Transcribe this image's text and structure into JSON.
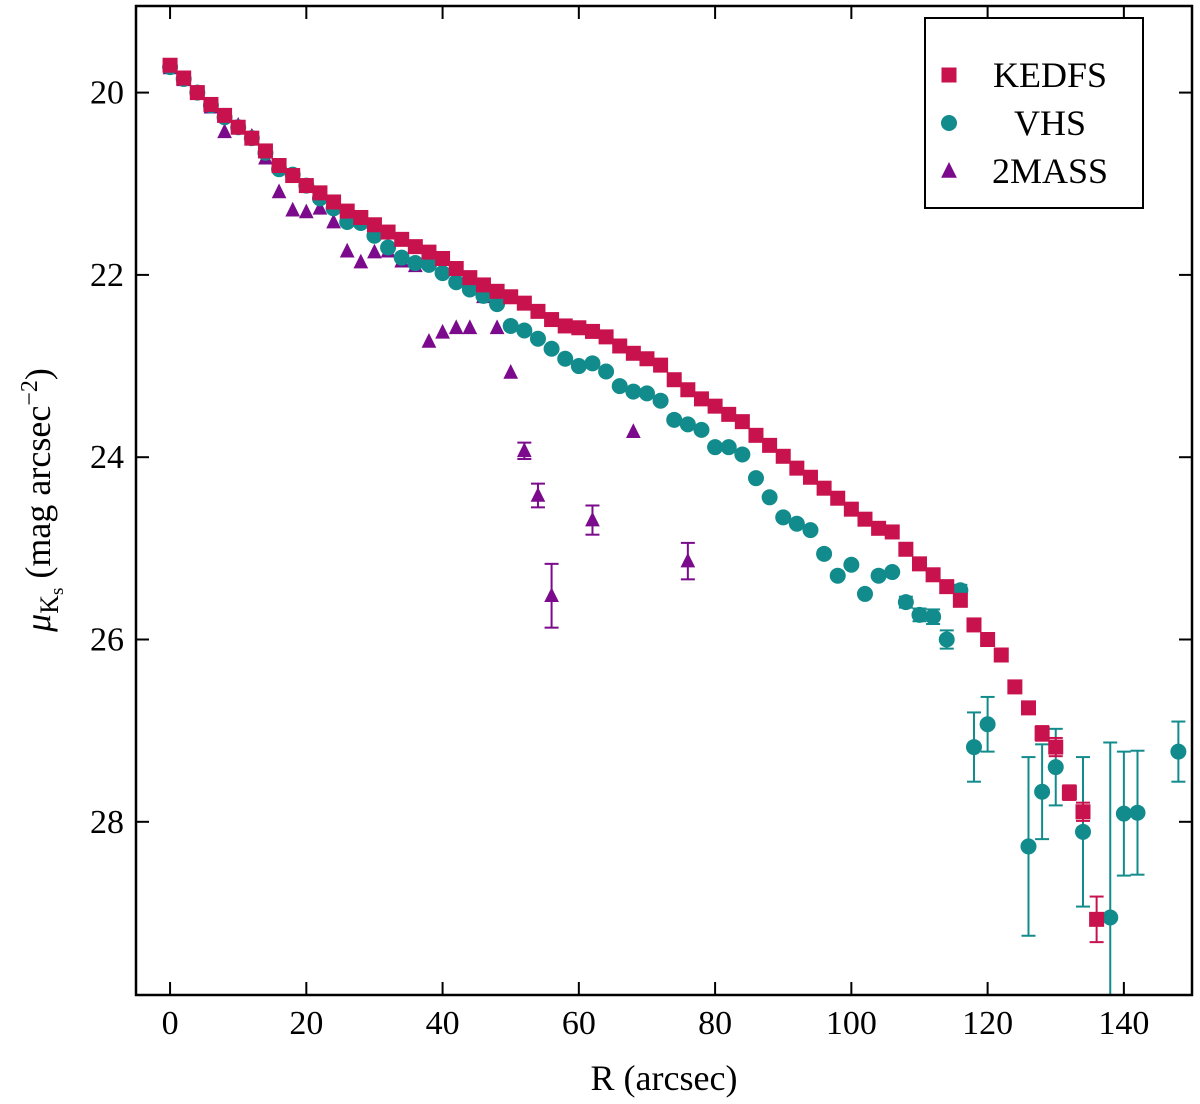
{
  "chart_data": {
    "type": "scatter",
    "title": "",
    "xlabel": "R (arcsec)",
    "ylabel": {
      "symbol": "μ",
      "subscript_main": "K",
      "subscript_sub": "s",
      "text": " (mag arcsec",
      "exponent": "−2",
      "close": ")"
    },
    "xlim": [
      -5,
      150
    ],
    "ylim": [
      29.9,
      19.05
    ],
    "y_inverted": true,
    "grid": false,
    "x_ticks": [
      0,
      20,
      40,
      60,
      80,
      100,
      120,
      140
    ],
    "x_tick_labels": [
      "0",
      "20",
      "40",
      "60",
      "80",
      "100",
      "120",
      "140"
    ],
    "y_ticks": [
      20,
      22,
      24,
      26,
      28
    ],
    "y_tick_labels": [
      "20",
      "22",
      "24",
      "26",
      "28"
    ],
    "legend_position": "top-right",
    "series": [
      {
        "name": "KEDFS",
        "marker": "square",
        "color": "#C8124E",
        "points": [
          [
            0,
            19.7
          ],
          [
            2,
            19.84
          ],
          [
            4,
            20.0
          ],
          [
            6,
            20.13
          ],
          [
            8,
            20.25
          ],
          [
            10,
            20.38
          ],
          [
            12,
            20.5
          ],
          [
            14,
            20.64
          ],
          [
            16,
            20.8
          ],
          [
            18,
            20.91
          ],
          [
            20,
            21.02
          ],
          [
            22,
            21.1
          ],
          [
            24,
            21.2
          ],
          [
            26,
            21.3
          ],
          [
            28,
            21.37
          ],
          [
            30,
            21.45
          ],
          [
            32,
            21.53
          ],
          [
            34,
            21.61
          ],
          [
            36,
            21.69
          ],
          [
            38,
            21.75
          ],
          [
            40,
            21.82
          ],
          [
            42,
            21.93
          ],
          [
            44,
            22.03
          ],
          [
            46,
            22.11
          ],
          [
            48,
            22.18
          ],
          [
            50,
            22.24
          ],
          [
            52,
            22.31
          ],
          [
            54,
            22.4
          ],
          [
            56,
            22.49
          ],
          [
            58,
            22.56
          ],
          [
            60,
            22.58
          ],
          [
            62,
            22.62
          ],
          [
            64,
            22.68
          ],
          [
            66,
            22.78
          ],
          [
            68,
            22.86
          ],
          [
            70,
            22.92
          ],
          [
            72,
            22.99
          ],
          [
            74,
            23.15
          ],
          [
            76,
            23.26
          ],
          [
            78,
            23.36
          ],
          [
            80,
            23.44
          ],
          [
            82,
            23.53
          ],
          [
            84,
            23.61
          ],
          [
            86,
            23.76
          ],
          [
            88,
            23.87
          ],
          [
            90,
            23.99
          ],
          [
            92,
            24.12
          ],
          [
            94,
            24.22
          ],
          [
            96,
            24.34
          ],
          [
            98,
            24.45
          ],
          [
            100,
            24.57
          ],
          [
            102,
            24.68
          ],
          [
            104,
            24.78
          ],
          [
            106,
            24.82
          ],
          [
            108,
            25.01
          ],
          [
            110,
            25.17
          ],
          [
            112,
            25.29
          ],
          [
            114,
            25.42
          ],
          [
            116,
            25.57
          ],
          [
            118,
            25.84
          ],
          [
            120,
            26.0
          ],
          [
            122,
            26.17
          ],
          [
            124,
            26.52
          ],
          [
            126,
            26.75
          ],
          [
            128,
            27.03
          ],
          [
            130,
            27.18
          ],
          [
            132,
            27.68
          ],
          [
            134,
            27.89
          ],
          [
            136,
            29.07
          ]
        ],
        "errors": [
          [
            128,
            0.08
          ],
          [
            130,
            0.1
          ],
          [
            132,
            0.08
          ],
          [
            134,
            0.1
          ],
          [
            136,
            0.25
          ]
        ]
      },
      {
        "name": "VHS",
        "marker": "circle",
        "color": "#128B8C",
        "points": [
          [
            0,
            19.72
          ],
          [
            2,
            19.85
          ],
          [
            4,
            20.0
          ],
          [
            6,
            20.14
          ],
          [
            8,
            20.27
          ],
          [
            10,
            20.38
          ],
          [
            12,
            20.5
          ],
          [
            14,
            20.66
          ],
          [
            16,
            20.84
          ],
          [
            18,
            20.9
          ],
          [
            20,
            21.02
          ],
          [
            22,
            21.16
          ],
          [
            24,
            21.27
          ],
          [
            26,
            21.42
          ],
          [
            28,
            21.43
          ],
          [
            30,
            21.57
          ],
          [
            32,
            21.7
          ],
          [
            34,
            21.81
          ],
          [
            36,
            21.87
          ],
          [
            38,
            21.89
          ],
          [
            40,
            21.98
          ],
          [
            42,
            22.08
          ],
          [
            44,
            22.16
          ],
          [
            46,
            22.23
          ],
          [
            48,
            22.32
          ],
          [
            50,
            22.56
          ],
          [
            52,
            22.61
          ],
          [
            54,
            22.7
          ],
          [
            56,
            22.81
          ],
          [
            58,
            22.92
          ],
          [
            60,
            23.0
          ],
          [
            62,
            22.97
          ],
          [
            64,
            23.06
          ],
          [
            66,
            23.22
          ],
          [
            68,
            23.28
          ],
          [
            70,
            23.3
          ],
          [
            72,
            23.38
          ],
          [
            74,
            23.59
          ],
          [
            76,
            23.64
          ],
          [
            78,
            23.7
          ],
          [
            80,
            23.89
          ],
          [
            82,
            23.89
          ],
          [
            84,
            23.97
          ],
          [
            86,
            24.23
          ],
          [
            88,
            24.44
          ],
          [
            90,
            24.66
          ],
          [
            92,
            24.73
          ],
          [
            94,
            24.8
          ],
          [
            96,
            25.06
          ],
          [
            98,
            25.3
          ],
          [
            100,
            25.18
          ],
          [
            102,
            25.5
          ],
          [
            104,
            25.3
          ],
          [
            106,
            25.26
          ],
          [
            108,
            25.59
          ],
          [
            110,
            25.73
          ],
          [
            112,
            25.75
          ],
          [
            114,
            26.0
          ],
          [
            116,
            25.46
          ],
          [
            118,
            27.18
          ],
          [
            120,
            26.93
          ],
          [
            126,
            28.27
          ],
          [
            128,
            27.67
          ],
          [
            130,
            27.4
          ],
          [
            134,
            28.11
          ],
          [
            138,
            29.05
          ],
          [
            140,
            27.91
          ],
          [
            142,
            27.9
          ],
          [
            148,
            27.23
          ]
        ],
        "errors": [
          [
            108,
            0.06
          ],
          [
            110,
            0.07
          ],
          [
            112,
            0.08
          ],
          [
            114,
            0.1
          ],
          [
            116,
            0.06
          ],
          [
            118,
            0.38
          ],
          [
            120,
            0.3
          ],
          [
            126,
            0.98
          ],
          [
            128,
            0.52
          ],
          [
            130,
            0.42
          ],
          [
            134,
            0.82
          ],
          [
            138,
            1.92
          ],
          [
            140,
            0.68
          ],
          [
            142,
            0.68
          ],
          [
            148,
            0.33
          ]
        ]
      },
      {
        "name": "2MASS",
        "marker": "triangle",
        "color": "#7B0A8C",
        "points": [
          [
            0,
            19.73
          ],
          [
            2,
            19.86
          ],
          [
            4,
            20.0
          ],
          [
            6,
            20.16
          ],
          [
            8,
            20.43
          ],
          [
            10,
            20.36
          ],
          [
            12,
            20.48
          ],
          [
            14,
            20.72
          ],
          [
            16,
            21.09
          ],
          [
            18,
            21.29
          ],
          [
            20,
            21.31
          ],
          [
            22,
            21.27
          ],
          [
            24,
            21.42
          ],
          [
            26,
            21.74
          ],
          [
            28,
            21.86
          ],
          [
            30,
            21.75
          ],
          [
            32,
            21.74
          ],
          [
            34,
            21.85
          ],
          [
            36,
            21.9
          ],
          [
            38,
            22.73
          ],
          [
            40,
            22.63
          ],
          [
            42,
            22.58
          ],
          [
            44,
            22.58
          ],
          [
            46,
            22.24
          ],
          [
            48,
            22.58
          ],
          [
            50,
            23.07
          ],
          [
            52,
            23.93
          ],
          [
            54,
            24.42
          ],
          [
            56,
            25.52
          ],
          [
            62,
            24.69
          ],
          [
            68,
            23.72
          ],
          [
            76,
            25.14
          ]
        ],
        "errors": [
          [
            52,
            0.09
          ],
          [
            54,
            0.13
          ],
          [
            56,
            0.35
          ],
          [
            62,
            0.16
          ],
          [
            76,
            0.2
          ]
        ]
      }
    ]
  }
}
